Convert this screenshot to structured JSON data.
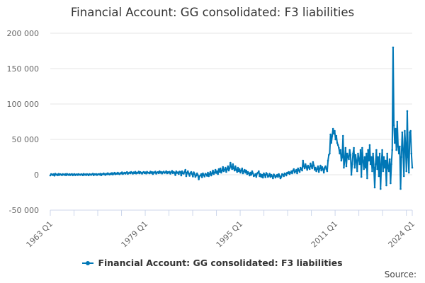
{
  "chart_data": {
    "type": "line",
    "title": "Financial Account: GG consolidated: F3 liabilities",
    "xlabel": "",
    "ylabel": "",
    "x_start": "1963 Q1",
    "x_end": "2024 Q1",
    "frequency": "quarterly",
    "x_tick_labels": [
      "1963 Q1",
      "1979 Q1",
      "1995 Q1",
      "2011 Q1",
      "2024 Q1"
    ],
    "y_tick_labels": [
      "200 000",
      "150 000",
      "100 000",
      "50 000",
      "0",
      "-50 000"
    ],
    "ylim": [
      -50000,
      200000
    ],
    "grid": true,
    "legend_position": "bottom",
    "series": [
      {
        "name": "Financial Account: GG consolidated: F3 liabilities",
        "color": "#0077b6",
        "values": [
          -1000,
          1000,
          500,
          -500,
          800,
          -1200,
          1500,
          0,
          500,
          -800,
          1200,
          -300,
          800,
          200,
          -600,
          1000,
          300,
          -200,
          900,
          -700,
          1200,
          400,
          -300,
          800,
          -500,
          600,
          1000,
          -800,
          400,
          900,
          -600,
          300,
          700,
          -400,
          1000,
          200,
          -300,
          800,
          500,
          -700,
          1200,
          0,
          600,
          -500,
          900,
          300,
          -800,
          1000,
          400,
          -200,
          700,
          1500,
          -600,
          800,
          300,
          1100,
          -400,
          600,
          900,
          200,
          1500,
          -700,
          1000,
          500,
          2000,
          800,
          -300,
          1400,
          600,
          2200,
          1000,
          300,
          1800,
          900,
          2500,
          400,
          1600,
          2800,
          700,
          2000,
          1200,
          3000,
          1500,
          800,
          2500,
          1800,
          3500,
          1000,
          2200,
          3000,
          1500,
          2800,
          3800,
          1200,
          2500,
          3200,
          2000,
          4000,
          2800,
          1500,
          3500,
          2200,
          4200,
          1800,
          3000,
          2500,
          4500,
          2000,
          3800,
          2800,
          1500,
          3200,
          4000,
          2200,
          3500,
          1800,
          4200,
          2800,
          3000,
          2000,
          4500,
          2500,
          3800,
          1000,
          3500,
          2800,
          4500,
          1500,
          3000,
          3800,
          2200,
          5000,
          2800,
          4000,
          1800,
          3500,
          4500,
          2500,
          3200,
          5000,
          2000,
          3800,
          2800,
          4200,
          1500,
          3500,
          5500,
          2200,
          4000,
          3000,
          -500,
          4800,
          2500,
          3500,
          1000,
          4500,
          3800,
          -1000,
          5000,
          2000,
          1500,
          4000,
          7000,
          -2000,
          3000,
          5000,
          1500,
          -1500,
          2500,
          4000,
          1000,
          -2500,
          3500,
          1500,
          -3000,
          -1000,
          2000,
          -500,
          -6500,
          -2000,
          -1000,
          1000,
          -3500,
          2000,
          -500,
          -2500,
          1500,
          500,
          -1500,
          3000,
          -2000,
          1000,
          4000,
          -1000,
          2000,
          6000,
          1000,
          3000,
          7000,
          2500,
          5000,
          1000,
          8000,
          4000,
          9000,
          3000,
          6000,
          11000,
          5000,
          7000,
          10000,
          4000,
          8000,
          12000,
          6000,
          9000,
          17000,
          11000,
          8000,
          15000,
          9000,
          6000,
          12000,
          7000,
          4000,
          10000,
          5000,
          8000,
          3000,
          6000,
          9000,
          2000,
          5000,
          7000,
          3000,
          6000,
          1000,
          4000,
          2000,
          -1000,
          3000,
          0,
          5000,
          2000,
          -2000,
          -1000,
          1000,
          -3000,
          2000,
          3000,
          5000,
          -2000,
          1000,
          -3000,
          0,
          -4000,
          2000,
          0,
          -3500,
          2500,
          1000,
          -3000,
          -1500,
          1500,
          -3000,
          0,
          -2000,
          -5000,
          500,
          -1000,
          -4000,
          -2000,
          0,
          -3000,
          1000,
          -1500,
          -5000,
          -3000,
          1000,
          0,
          -2000,
          2000,
          1000,
          -1000,
          3000,
          2000,
          4000,
          1000,
          3000,
          5000,
          2000,
          6000,
          8000,
          3000,
          5000,
          7000,
          2000,
          9000,
          6000,
          4000,
          10000,
          8000,
          6000,
          20000,
          12000,
          9000,
          15000,
          11000,
          7000,
          13000,
          10000,
          8000,
          16000,
          12000,
          9000,
          18000,
          13000,
          7000,
          10000,
          5000,
          8000,
          12000,
          4000,
          9000,
          13000,
          6000,
          11000,
          8000,
          3000,
          10000,
          12000,
          8000,
          5000,
          20000,
          28000,
          30000,
          57000,
          45000,
          55000,
          65000,
          58000,
          62000,
          50000,
          55000,
          45000,
          42000,
          38000,
          30000,
          35000,
          20000,
          25000,
          55000,
          10000,
          20000,
          38000,
          12000,
          30000,
          25000,
          22000,
          35000,
          28000,
          0,
          15000,
          30000,
          38000,
          10000,
          28000,
          20000,
          5000,
          30000,
          22000,
          15000,
          35000,
          -3000,
          38000,
          20000,
          8000,
          25000,
          10000,
          30000,
          -5000,
          35000,
          20000,
          42000,
          15000,
          25000,
          5000,
          30000,
          10000,
          -18000,
          15000,
          35000,
          8000,
          25000,
          -2000,
          30000,
          -20000,
          15000,
          35000,
          5000,
          25000,
          10000,
          20000,
          -15000,
          30000,
          10000,
          5000,
          22000,
          -12000,
          15000,
          35000,
          180000,
          70000,
          45000,
          65000,
          35000,
          75000,
          40000,
          30000,
          40000,
          -20000,
          25000,
          60000,
          35000,
          -2000,
          62000,
          40000,
          5000,
          90000,
          25000,
          3000,
          60000,
          62000,
          30000,
          10000
        ]
      }
    ]
  },
  "legend": {
    "label": "Financial Account: GG consolidated: F3 liabilities"
  },
  "source": {
    "label": "Source:"
  }
}
